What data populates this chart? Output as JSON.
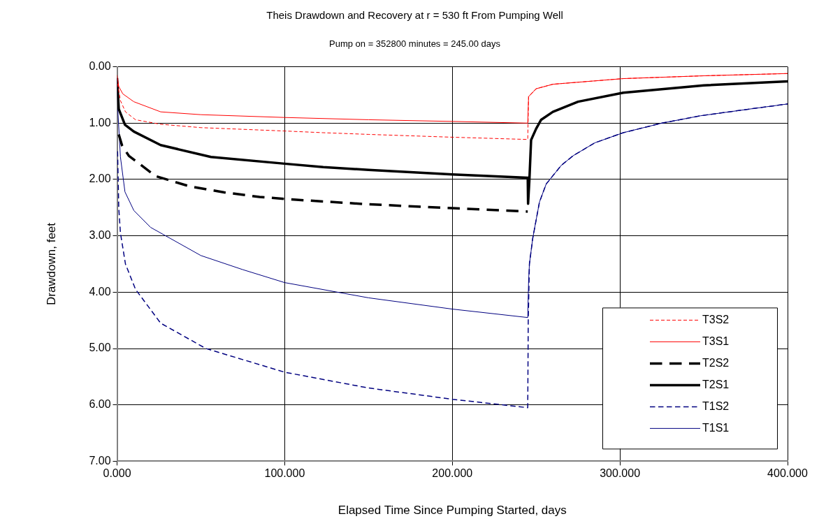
{
  "chart_data": {
    "type": "line",
    "title": "Theis Drawdown and Recovery at r = 530 ft From Pumping Well",
    "subtitle": "Pump on = 352800 minutes = 245.00 days",
    "xlabel": "Elapsed Time Since Pumping Started, days",
    "ylabel": "Drawdown, feet",
    "xlim": [
      0,
      400
    ],
    "xticks": [
      {
        "value": 0,
        "label": "0.000"
      },
      {
        "value": 100,
        "label": "100.000"
      },
      {
        "value": 200,
        "label": "200.000"
      },
      {
        "value": 300,
        "label": "300.000"
      },
      {
        "value": 400,
        "label": "400.000"
      }
    ],
    "ylim": [
      7,
      0
    ],
    "yticks": [
      {
        "value": 0,
        "label": "0.00"
      },
      {
        "value": 1,
        "label": "1.00"
      },
      {
        "value": 2,
        "label": "2.00"
      },
      {
        "value": 3,
        "label": "3.00"
      },
      {
        "value": 4,
        "label": "4.00"
      },
      {
        "value": 5,
        "label": "5.00"
      },
      {
        "value": 6,
        "label": "6.00"
      },
      {
        "value": 7,
        "label": "7.00"
      }
    ],
    "grid": true,
    "legend": "bottom right",
    "marker": "none",
    "series": [
      {
        "name": "T3S2",
        "color": "#ff0000",
        "line_style": "dashed",
        "x": [
          0.3,
          2,
          5,
          11,
          26,
          50,
          100,
          123,
          150,
          200,
          245,
          245.5,
          250,
          260,
          302,
          350,
          400
        ],
        "values": [
          0.3,
          0.6,
          0.8,
          0.94,
          1.02,
          1.08,
          1.14,
          1.17,
          1.2,
          1.25,
          1.29,
          0.53,
          0.39,
          0.31,
          0.21,
          0.16,
          0.12
        ]
      },
      {
        "name": "T3S1",
        "color": "#ff0000",
        "line_style": "solid",
        "x": [
          0,
          1,
          3.4,
          10,
          26,
          50,
          100,
          150,
          200,
          245,
          245.5,
          250,
          260,
          302,
          350,
          400
        ],
        "values": [
          0.15,
          0.35,
          0.48,
          0.62,
          0.8,
          0.85,
          0.9,
          0.94,
          0.97,
          1.0,
          0.53,
          0.39,
          0.31,
          0.21,
          0.16,
          0.12
        ]
      },
      {
        "name": "T2S2",
        "color": "#000000",
        "line_style": "dashed",
        "x": [
          1,
          3,
          7,
          23,
          43,
          64,
          85,
          107,
          150,
          200,
          245
        ],
        "values": [
          1.2,
          1.4,
          1.58,
          1.94,
          2.12,
          2.23,
          2.31,
          2.36,
          2.44,
          2.51,
          2.57
        ]
      },
      {
        "name": "T2S1",
        "color": "#000000",
        "line_style": "solid",
        "x": [
          0,
          1,
          4.7,
          10,
          26,
          56,
          100,
          123,
          150,
          200,
          245,
          245.2,
          246,
          247,
          250,
          253,
          260,
          275,
          302,
          350,
          400
        ],
        "values": [
          0.2,
          0.75,
          1.03,
          1.15,
          1.39,
          1.6,
          1.72,
          1.78,
          1.83,
          1.91,
          1.97,
          2.43,
          2.0,
          1.3,
          1.1,
          0.94,
          0.8,
          0.62,
          0.46,
          0.33,
          0.26
        ]
      },
      {
        "name": "T1S2",
        "color": "#000080",
        "line_style": "dashed",
        "x": [
          0.3,
          1,
          2,
          5,
          11,
          26,
          53,
          100,
          150,
          200,
          245,
          245.3,
          246,
          248,
          252,
          256,
          265,
          272,
          285,
          302,
          325,
          348,
          375,
          400
        ],
        "values": [
          1.5,
          2.5,
          2.95,
          3.5,
          3.95,
          4.55,
          5.0,
          5.42,
          5.7,
          5.9,
          6.05,
          4.5,
          3.5,
          3.04,
          2.4,
          2.08,
          1.75,
          1.58,
          1.35,
          1.17,
          1.0,
          0.87,
          0.76,
          0.66
        ]
      },
      {
        "name": "T1S1",
        "color": "#000080",
        "line_style": "solid",
        "x": [
          0,
          0.5,
          2,
          4.7,
          10,
          20,
          29,
          50,
          75,
          100,
          150,
          200,
          245,
          245.5,
          246,
          248,
          252,
          256,
          265,
          272,
          285,
          302,
          325,
          348,
          375,
          400
        ],
        "values": [
          0.2,
          0.8,
          1.6,
          2.22,
          2.55,
          2.85,
          3.0,
          3.35,
          3.6,
          3.83,
          4.1,
          4.3,
          4.45,
          3.8,
          3.5,
          3.04,
          2.4,
          2.08,
          1.75,
          1.58,
          1.35,
          1.17,
          1.0,
          0.87,
          0.76,
          0.66
        ]
      }
    ]
  }
}
